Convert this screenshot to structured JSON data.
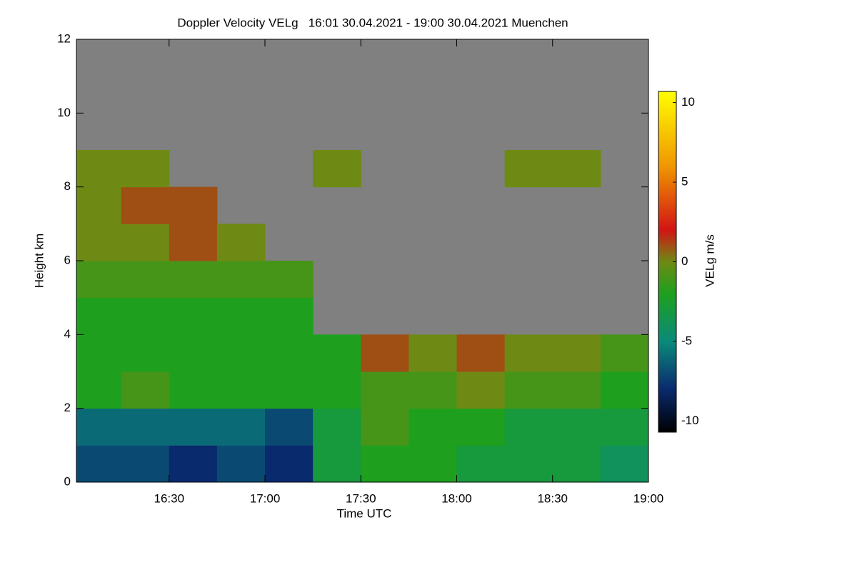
{
  "chart_data": {
    "type": "heatmap",
    "title": "Doppler Velocity VELg   16:01 30.04.2021 - 19:00 30.04.2021 Muenchen",
    "x_label": "Time UTC",
    "y_label": "Height km",
    "colorbar_label": "VELg m/s",
    "xlim": [
      16.0167,
      19.0
    ],
    "xticks": [
      {
        "value": 16.5,
        "label": "16:30"
      },
      {
        "value": 17.0,
        "label": "17:00"
      },
      {
        "value": 17.5,
        "label": "17:30"
      },
      {
        "value": 18.0,
        "label": "18:00"
      },
      {
        "value": 18.5,
        "label": "18:30"
      },
      {
        "value": 19.0,
        "label": "19:00"
      }
    ],
    "ylim": [
      0,
      12
    ],
    "yticks": [
      0,
      2,
      4,
      6,
      8,
      10,
      12
    ],
    "xbins": [
      16.0167,
      16.25,
      16.5,
      16.75,
      17.0,
      17.25,
      17.5,
      17.75,
      18.0,
      18.25,
      18.5,
      18.75,
      19.0
    ],
    "ybins": [
      0,
      1,
      2,
      3,
      4,
      5,
      6,
      7,
      8,
      9,
      10,
      11,
      12
    ],
    "values": [
      [
        -7,
        -7,
        -8,
        -7,
        -8,
        -3,
        -2,
        -2,
        -3,
        -3,
        -3,
        -4
      ],
      [
        -6,
        -6,
        -6,
        -6,
        -7,
        -3,
        -1,
        -2,
        -2,
        -3,
        -3,
        -3
      ],
      [
        -2,
        -1,
        -2,
        -2,
        -2,
        -2,
        -1,
        -1,
        0,
        -1,
        -1,
        -2
      ],
      [
        -2,
        -2,
        -2,
        -2,
        -2,
        -2,
        1,
        0,
        1,
        0,
        0,
        -1
      ],
      [
        -2,
        -2,
        -2,
        -2,
        -2,
        null,
        null,
        null,
        null,
        null,
        null,
        null
      ],
      [
        -1,
        -1,
        -1,
        -1,
        -1,
        null,
        null,
        null,
        null,
        null,
        null,
        null
      ],
      [
        0,
        0,
        1,
        0,
        null,
        null,
        null,
        null,
        null,
        null,
        null,
        null
      ],
      [
        0,
        1,
        1,
        null,
        null,
        null,
        null,
        null,
        null,
        null,
        null,
        null
      ],
      [
        0,
        0,
        null,
        null,
        null,
        0,
        null,
        null,
        null,
        0,
        0,
        null
      ],
      [
        null,
        null,
        null,
        null,
        null,
        null,
        null,
        null,
        null,
        null,
        null,
        null
      ],
      [
        null,
        null,
        null,
        null,
        null,
        null,
        null,
        null,
        null,
        null,
        null,
        null
      ],
      [
        null,
        null,
        null,
        null,
        null,
        null,
        null,
        null,
        null,
        null,
        null,
        null
      ]
    ],
    "missing_color": "#808080",
    "clim": [
      -10.7,
      10.7
    ],
    "cticks": [
      -10,
      -5,
      0,
      5,
      10
    ],
    "colormap": [
      [
        -10.7,
        "#000000"
      ],
      [
        -8,
        "#0a2a6e"
      ],
      [
        -5,
        "#0a8a7a"
      ],
      [
        -2,
        "#1ea01e"
      ],
      [
        0,
        "#6e8a14"
      ],
      [
        2,
        "#d21414"
      ],
      [
        6,
        "#f09600"
      ],
      [
        10.7,
        "#ffff00"
      ]
    ]
  }
}
